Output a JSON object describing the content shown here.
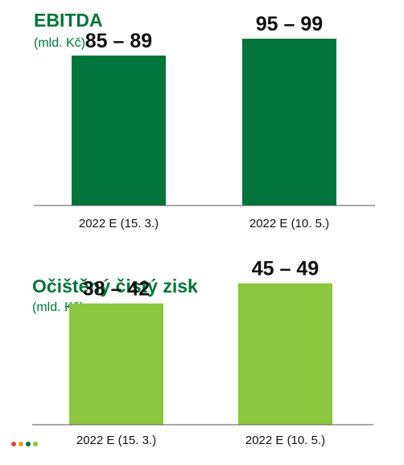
{
  "colors": {
    "dark_green": "#00743a",
    "light_green": "#8dc63f",
    "dots": [
      "#e2463f",
      "#f39c20",
      "#00743a",
      "#8dc63f"
    ]
  },
  "chart_data": [
    {
      "type": "bar",
      "title": "EBITDA",
      "subtitle": "(mld. Kč)",
      "categories": [
        "2022 E (15. 3.)",
        "2022 E (10. 5.)"
      ],
      "series": [
        {
          "ranges": [
            [
              85,
              89
            ],
            [
              95,
              99
            ]
          ],
          "value_labels": [
            "85 – 89",
            "95 – 99"
          ]
        }
      ],
      "ylim": [
        0,
        110
      ],
      "grid": false,
      "legend": "none"
    },
    {
      "type": "bar",
      "title": "Očištěný čistý zisk",
      "subtitle": "(mld. Kč)",
      "categories": [
        "2022 E (15. 3.)",
        "2022 E (10. 5.)"
      ],
      "series": [
        {
          "ranges": [
            [
              38,
              42
            ],
            [
              45,
              49
            ]
          ],
          "value_labels": [
            "38 – 42",
            "45 – 49"
          ]
        }
      ],
      "ylim": [
        0,
        55
      ],
      "grid": false,
      "legend": "none"
    }
  ]
}
